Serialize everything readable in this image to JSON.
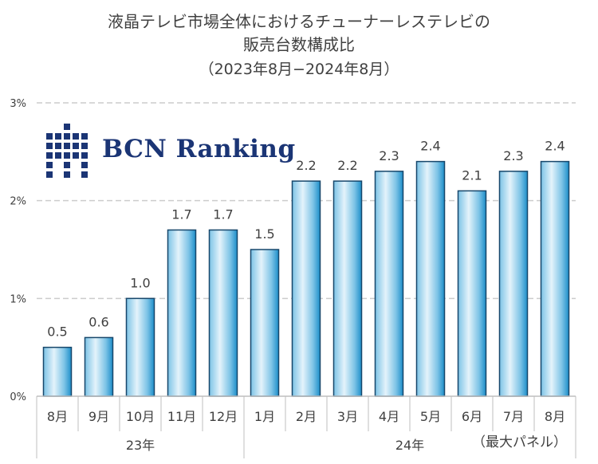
{
  "title": {
    "line1": "液晶テレビ市場全体におけるチューナーレステレビの",
    "line2": "販売台数構成比",
    "line3": "（2023年8月−2024年8月）"
  },
  "logo": {
    "text": "BCN Ranking",
    "color": "#1b3575"
  },
  "note": "（最大パネル）",
  "chart_data": {
    "type": "bar",
    "categories": [
      "8月",
      "9月",
      "10月",
      "11月",
      "12月",
      "1月",
      "2月",
      "3月",
      "4月",
      "5月",
      "6月",
      "7月",
      "8月"
    ],
    "values": [
      0.5,
      0.6,
      1.0,
      1.7,
      1.7,
      1.5,
      2.2,
      2.2,
      2.3,
      2.4,
      2.1,
      2.3,
      2.4
    ],
    "value_labels": [
      "0.5",
      "0.6",
      "1.0",
      "1.7",
      "1.7",
      "1.5",
      "2.2",
      "2.2",
      "2.3",
      "2.4",
      "2.1",
      "2.3",
      "2.4"
    ],
    "groups": [
      {
        "label": "23年",
        "count": 5
      },
      {
        "label": "24年",
        "count": 8
      }
    ],
    "ylim": [
      0,
      3
    ],
    "yticks": [
      0,
      1,
      2,
      3
    ],
    "ytick_labels": [
      "0%",
      "1%",
      "2%",
      "3%"
    ],
    "grid": true,
    "colors": {
      "bar_light": "#e4f3fb",
      "bar_mid": "#7cc3e6",
      "bar_dark": "#1c8ec9",
      "bar_edge": "#17476b",
      "grid": "#cccccc"
    }
  }
}
